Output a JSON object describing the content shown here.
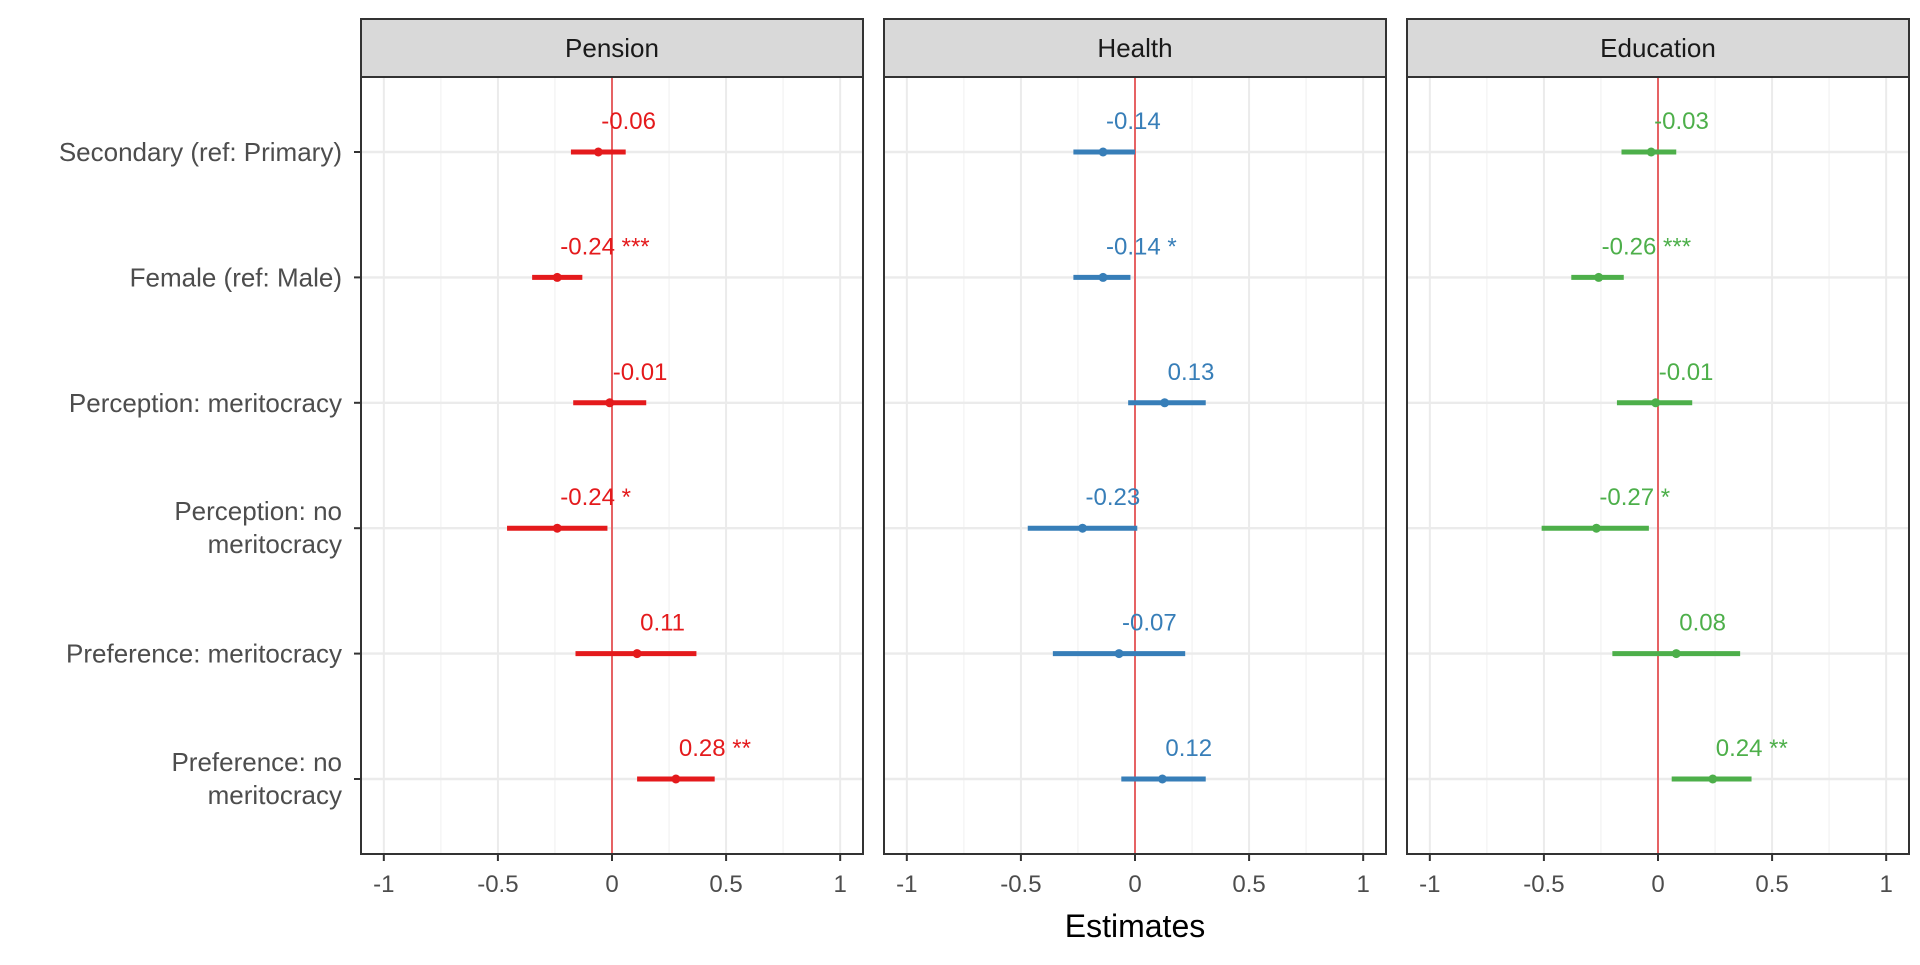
{
  "chart_data": {
    "type": "forest",
    "xlabel": "Estimates",
    "xlim": [
      -1.1,
      1.1
    ],
    "xticks": [
      -1,
      -0.5,
      0,
      0.5,
      1
    ],
    "xtick_labels": [
      "-1",
      "-0.5",
      "0",
      "0.5",
      "1"
    ],
    "grid": true,
    "reference_line": 0,
    "reference_color": "#E41A1C",
    "categories": [
      [
        "Secondary (ref: Primary)"
      ],
      [
        "Female (ref: Male)"
      ],
      [
        "Perception: meritocracy"
      ],
      [
        "Perception: no",
        "meritocracy"
      ],
      [
        "Preference: meritocracy"
      ],
      [
        "Preference: no",
        "meritocracy"
      ]
    ],
    "panels": [
      {
        "name": "Pension",
        "color": "#E41A1C",
        "estimates": [
          -0.06,
          -0.24,
          -0.01,
          -0.24,
          0.11,
          0.28
        ],
        "ci_low": [
          -0.18,
          -0.35,
          -0.17,
          -0.46,
          -0.16,
          0.11
        ],
        "ci_high": [
          0.06,
          -0.13,
          0.15,
          -0.02,
          0.37,
          0.45
        ],
        "labels": [
          "-0.06",
          "-0.24 ***",
          "-0.01",
          "-0.24 *",
          "0.11",
          "0.28 **"
        ]
      },
      {
        "name": "Health",
        "color": "#377EB8",
        "estimates": [
          -0.14,
          -0.14,
          0.13,
          -0.23,
          -0.07,
          0.12
        ],
        "ci_low": [
          -0.27,
          -0.27,
          -0.03,
          -0.47,
          -0.36,
          -0.06
        ],
        "ci_high": [
          0.0,
          -0.02,
          0.31,
          0.01,
          0.22,
          0.31
        ],
        "labels": [
          "-0.14",
          "-0.14 *",
          "0.13",
          "-0.23",
          "-0.07",
          "0.12"
        ]
      },
      {
        "name": "Education",
        "color": "#4DAF4A",
        "estimates": [
          -0.03,
          -0.26,
          -0.01,
          -0.27,
          0.08,
          0.24
        ],
        "ci_low": [
          -0.16,
          -0.38,
          -0.18,
          -0.51,
          -0.2,
          0.06
        ],
        "ci_high": [
          0.08,
          -0.15,
          0.15,
          -0.04,
          0.36,
          0.41
        ],
        "labels": [
          "-0.03",
          "-0.26 ***",
          "-0.01",
          "-0.27 *",
          "0.08",
          "0.24 **"
        ]
      }
    ]
  }
}
